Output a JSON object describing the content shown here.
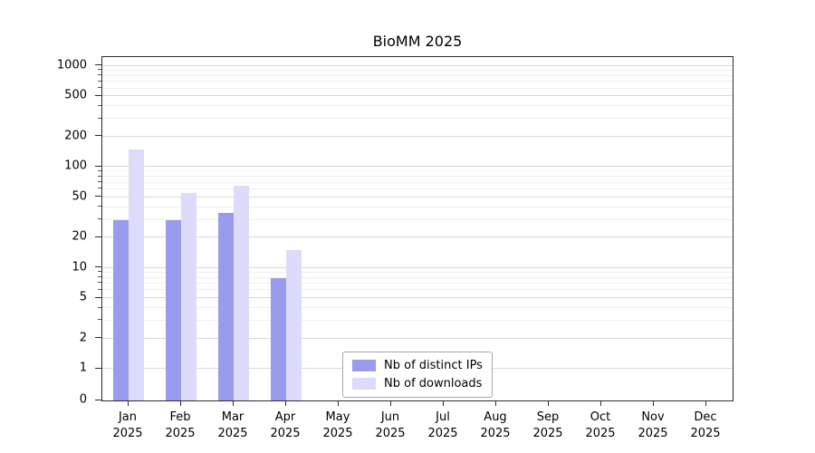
{
  "chart_data": {
    "type": "bar",
    "title": "BioMM 2025",
    "categories": [
      "Jan",
      "Feb",
      "Mar",
      "Apr",
      "May",
      "Jun",
      "Jul",
      "Aug",
      "Sep",
      "Oct",
      "Nov",
      "Dec"
    ],
    "year": "2025",
    "series": [
      {
        "name": "Nb of distinct IPs",
        "color": "#9b9bee",
        "values": [
          30,
          30,
          35,
          8,
          0,
          0,
          0,
          0,
          0,
          0,
          0,
          0
        ]
      },
      {
        "name": "Nb of downloads",
        "color": "#dcdcfa",
        "values": [
          150,
          55,
          65,
          15,
          0,
          0,
          0,
          0,
          0,
          0,
          0,
          0
        ]
      }
    ],
    "scale": "symlog",
    "yticks": [
      0,
      1,
      2,
      5,
      10,
      20,
      50,
      100,
      200,
      500,
      1000
    ],
    "ylim": [
      0,
      1200
    ],
    "grid": true,
    "legend": {
      "position": "lower center",
      "entries": [
        "Nb of distinct IPs",
        "Nb of downloads"
      ]
    }
  }
}
